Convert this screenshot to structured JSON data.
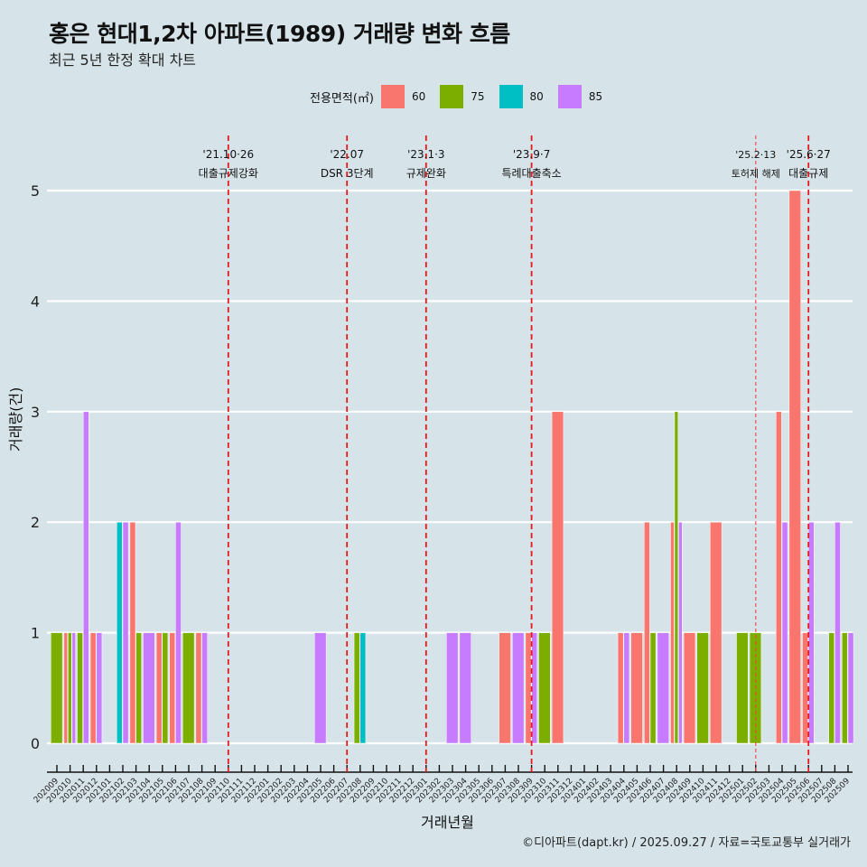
{
  "header": {
    "title": "홍은 현대1,2차 아파트(1989) 거래량 변화 흐름",
    "subtitle": "최근 5년 한정 확대 차트"
  },
  "legend": {
    "title": "전용면적(㎡)",
    "items": [
      {
        "label": "60",
        "color": "#f8766d"
      },
      {
        "label": "75",
        "color": "#7cae00"
      },
      {
        "label": "80",
        "color": "#00bfc4"
      },
      {
        "label": "85",
        "color": "#c77cff"
      }
    ]
  },
  "footer": "©디아파트(dapt.kr) / 2025.09.27 / 자료=국토교통부 실거래가",
  "chart_data": {
    "type": "bar",
    "title": "홍은 현대1,2차 아파트(1989) 거래량 변화 흐름",
    "subtitle": "최근 5년 한정 확대 차트",
    "xlabel": "거래년월",
    "ylabel": "거래량(건)",
    "ylim": [
      0,
      5
    ],
    "yticks": [
      0,
      1,
      2,
      3,
      4,
      5
    ],
    "grid": true,
    "legend_position": "top",
    "categories": [
      "202009",
      "202010",
      "202011",
      "202012",
      "202101",
      "202102",
      "202103",
      "202104",
      "202105",
      "202106",
      "202107",
      "202108",
      "202109",
      "202110",
      "202111",
      "202112",
      "202201",
      "202202",
      "202203",
      "202204",
      "202205",
      "202206",
      "202207",
      "202208",
      "202209",
      "202210",
      "202211",
      "202212",
      "202301",
      "202302",
      "202303",
      "202304",
      "202305",
      "202306",
      "202307",
      "202308",
      "202309",
      "202310",
      "202311",
      "202312",
      "202401",
      "202402",
      "202403",
      "202404",
      "202405",
      "202406",
      "202407",
      "202408",
      "202409",
      "202410",
      "202411",
      "202412",
      "202501",
      "202502",
      "202503",
      "202504",
      "202505",
      "202506",
      "202507",
      "202508",
      "202509"
    ],
    "series_keys": [
      "60",
      "75",
      "80",
      "85"
    ],
    "bars": [
      {
        "month": "202009",
        "values": {
          "75": 1
        }
      },
      {
        "month": "202010",
        "values": {
          "60": 1,
          "75": 1,
          "85": 1
        }
      },
      {
        "month": "202011",
        "values": {
          "75": 1,
          "85": 3
        }
      },
      {
        "month": "202012",
        "values": {
          "60": 1,
          "85": 1
        }
      },
      {
        "month": "202102",
        "values": {
          "80": 2,
          "85": 2
        }
      },
      {
        "month": "202103",
        "values": {
          "60": 2,
          "75": 1
        }
      },
      {
        "month": "202104",
        "values": {
          "85": 1
        }
      },
      {
        "month": "202105",
        "values": {
          "60": 1,
          "75": 1
        }
      },
      {
        "month": "202106",
        "values": {
          "60": 1,
          "85": 2
        }
      },
      {
        "month": "202107",
        "values": {
          "75": 1
        }
      },
      {
        "month": "202108",
        "values": {
          "60": 1,
          "85": 1
        }
      },
      {
        "month": "202205",
        "values": {
          "85": 1
        }
      },
      {
        "month": "202208",
        "values": {
          "75": 1,
          "80": 1
        }
      },
      {
        "month": "202303",
        "values": {
          "85": 1
        }
      },
      {
        "month": "202304",
        "values": {
          "85": 1
        }
      },
      {
        "month": "202307",
        "values": {
          "60": 1
        }
      },
      {
        "month": "202308",
        "values": {
          "85": 1
        }
      },
      {
        "month": "202309",
        "values": {
          "60": 1,
          "85": 1
        }
      },
      {
        "month": "202310",
        "values": {
          "75": 1
        }
      },
      {
        "month": "202311",
        "values": {
          "60": 3
        }
      },
      {
        "month": "202404",
        "values": {
          "60": 1,
          "85": 1
        }
      },
      {
        "month": "202405",
        "values": {
          "60": 1
        }
      },
      {
        "month": "202406",
        "values": {
          "60": 2,
          "75": 1
        }
      },
      {
        "month": "202407",
        "values": {
          "85": 1
        }
      },
      {
        "month": "202408",
        "values": {
          "60": 2,
          "75": 3,
          "85": 2
        }
      },
      {
        "month": "202409",
        "values": {
          "60": 1
        }
      },
      {
        "month": "202410",
        "values": {
          "75": 1
        }
      },
      {
        "month": "202411",
        "values": {
          "60": 2
        }
      },
      {
        "month": "202501",
        "values": {
          "75": 1
        }
      },
      {
        "month": "202502",
        "values": {
          "75": 1
        }
      },
      {
        "month": "202504",
        "values": {
          "60": 3,
          "85": 2
        }
      },
      {
        "month": "202505",
        "values": {
          "60": 5
        }
      },
      {
        "month": "202506",
        "values": {
          "60": 1,
          "85": 2
        }
      },
      {
        "month": "202508",
        "values": {
          "75": 1,
          "85": 2
        }
      },
      {
        "month": "202509",
        "values": {
          "75": 1,
          "85": 1
        }
      }
    ],
    "annotations": [
      {
        "month": "202110",
        "offset": 0.0,
        "date": "'21.10·26",
        "label": "대출규제강화",
        "style": "bold"
      },
      {
        "month": "202207",
        "offset": 0.0,
        "date": "'22.07",
        "label": "DSR 3단계",
        "style": "bold"
      },
      {
        "month": "202301",
        "offset": 0.0,
        "date": "'23.1·3",
        "label": "규제완화",
        "style": "bold"
      },
      {
        "month": "202309",
        "offset": 0.0,
        "date": "'23.9·7",
        "label": "특례대출축소",
        "style": "bold"
      },
      {
        "month": "202502",
        "offset": 0.0,
        "date": "'25.2·13",
        "label": "토허제 해제",
        "style": "thin"
      },
      {
        "month": "202506",
        "offset": 0.0,
        "date": "'25.6·27",
        "label": "대출규제",
        "style": "bold"
      }
    ]
  }
}
